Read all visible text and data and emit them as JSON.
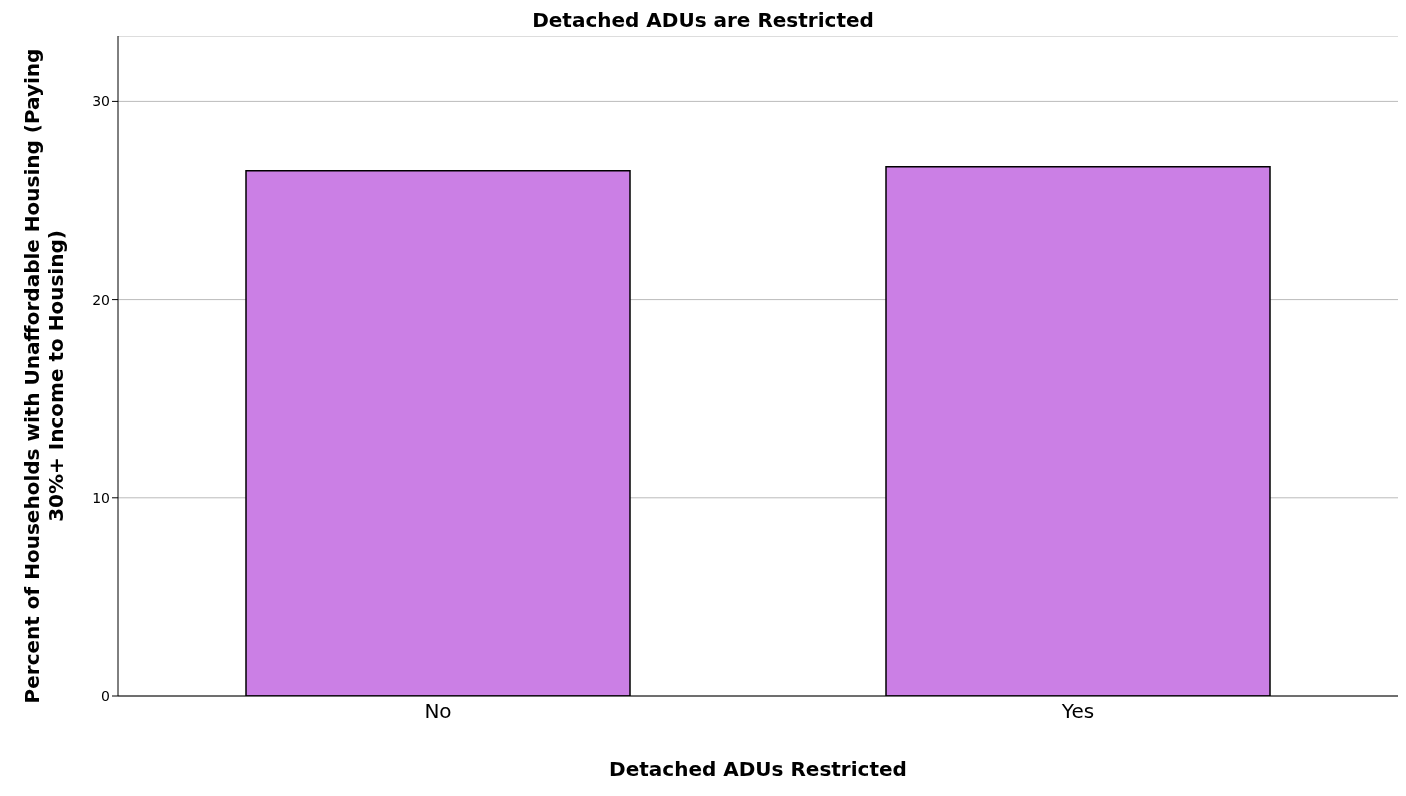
{
  "chart_data": {
    "type": "bar",
    "title": "Detached ADUs are Restricted",
    "xlabel": "Detached ADUs Restricted",
    "ylabel": "Percent of Households with Unaffordable Housing (Paying 30%+ Income to Housing)",
    "categories": [
      "No",
      "Yes"
    ],
    "values": [
      26.5,
      26.7
    ],
    "color": "#cb7fe5",
    "ylim": [
      0,
      33.3
    ],
    "yticks": [
      0,
      10,
      20,
      30
    ],
    "grid": "y"
  }
}
